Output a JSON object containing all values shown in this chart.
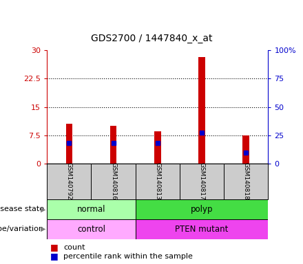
{
  "title": "GDS2700 / 1447840_x_at",
  "samples": [
    "GSM140792",
    "GSM140816",
    "GSM140813",
    "GSM140817",
    "GSM140818"
  ],
  "counts": [
    10.5,
    10.0,
    8.5,
    28.2,
    7.5
  ],
  "percentile_ranks": [
    18.0,
    18.0,
    18.0,
    27.0,
    10.0
  ],
  "ylim_left": [
    0,
    30
  ],
  "ylim_right": [
    0,
    100
  ],
  "yticks_left": [
    0,
    7.5,
    15,
    22.5,
    30
  ],
  "yticks_right": [
    0,
    25,
    50,
    75,
    100
  ],
  "ytick_labels_left": [
    "0",
    "7.5",
    "15",
    "22.5",
    "30"
  ],
  "ytick_labels_right": [
    "0",
    "25",
    "50",
    "75",
    "100%"
  ],
  "bar_color": "#cc0000",
  "marker_color": "#0000cc",
  "disease_groups": [
    {
      "label": "normal",
      "start": 0,
      "end": 2,
      "color": "#aaffaa"
    },
    {
      "label": "polyp",
      "start": 2,
      "end": 5,
      "color": "#44dd44"
    }
  ],
  "genotype_groups": [
    {
      "label": "control",
      "start": 0,
      "end": 2,
      "color": "#ffaaff"
    },
    {
      "label": "PTEN mutant",
      "start": 2,
      "end": 5,
      "color": "#ee44ee"
    }
  ],
  "legend_count_label": "count",
  "legend_percentile_label": "percentile rank within the sample",
  "disease_state_label": "disease state",
  "genotype_label": "genotype/variation",
  "bar_width": 0.15,
  "xlabel_area_color": "#cccccc",
  "title_fontsize": 10
}
